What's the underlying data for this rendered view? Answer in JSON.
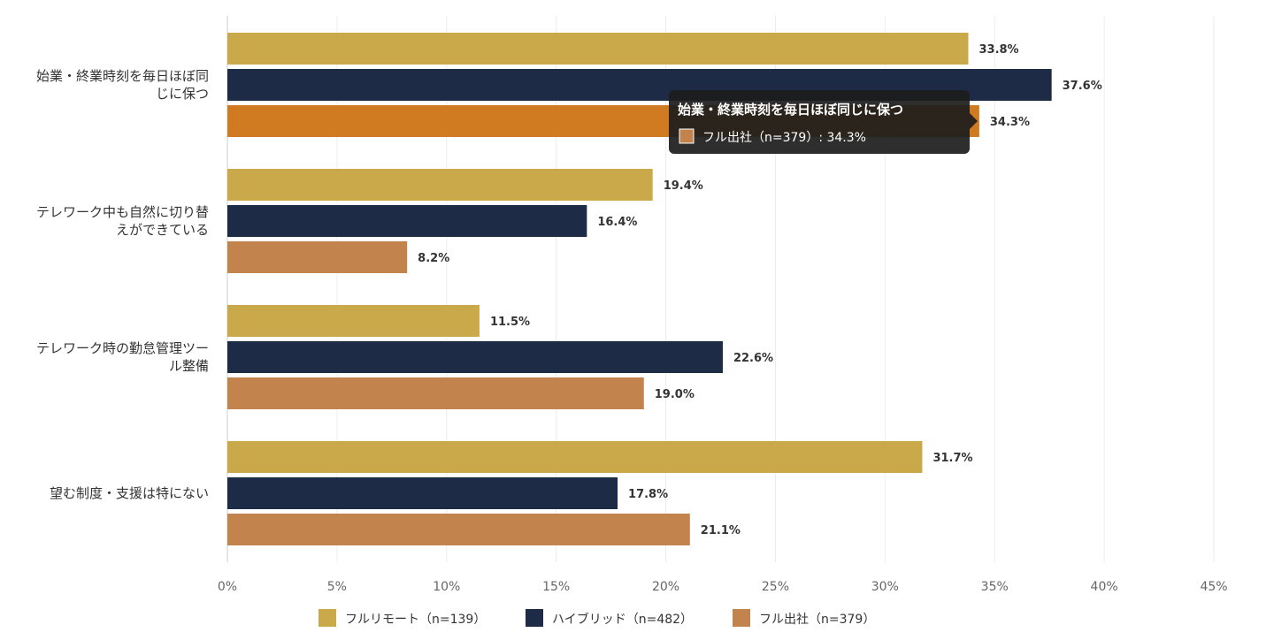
{
  "chart_data": {
    "type": "bar",
    "orientation": "horizontal",
    "categories": [
      [
        "始業・終業時刻を毎日ほぼ同",
        "じに保つ"
      ],
      [
        "テレワーク中も自然に切り替",
        "えができている"
      ],
      [
        "テレワーク時の勤怠管理ツー",
        "ル整備"
      ],
      [
        "望む制度・支援は特にない"
      ]
    ],
    "series": [
      {
        "name": "フルリモート（n=139）",
        "color": "#C9A94A",
        "values": [
          33.8,
          19.4,
          11.5,
          31.7
        ],
        "labels": [
          "33.8%",
          "19.4%",
          "11.5%",
          "31.7%"
        ]
      },
      {
        "name": "ハイブリッド（n=482）",
        "color": "#1E2B47",
        "values": [
          37.6,
          16.4,
          22.6,
          17.8
        ],
        "labels": [
          "37.6%",
          "16.4%",
          "22.6%",
          "17.8%"
        ]
      },
      {
        "name": "フル出社（n=379）",
        "color": "#C2844C",
        "values": [
          34.3,
          8.2,
          19.0,
          21.1
        ],
        "labels": [
          "34.3%",
          "8.2%",
          "19.0%",
          "21.1%"
        ]
      }
    ],
    "xlim": [
      0,
      45
    ],
    "xticks": [
      0,
      5,
      10,
      15,
      20,
      25,
      30,
      35,
      40,
      45
    ],
    "xtick_labels": [
      "0%",
      "5%",
      "10%",
      "15%",
      "20%",
      "25%",
      "30%",
      "35%",
      "40%",
      "45%"
    ],
    "grid": true,
    "legend_position": "bottom",
    "highlight": {
      "series": 2,
      "category": 0,
      "color": "#D07A22"
    },
    "tooltip": {
      "title": "始業・終業時刻を毎日ほぼ同じに保つ",
      "body": "フル出社（n=379）: 34.3%"
    }
  }
}
